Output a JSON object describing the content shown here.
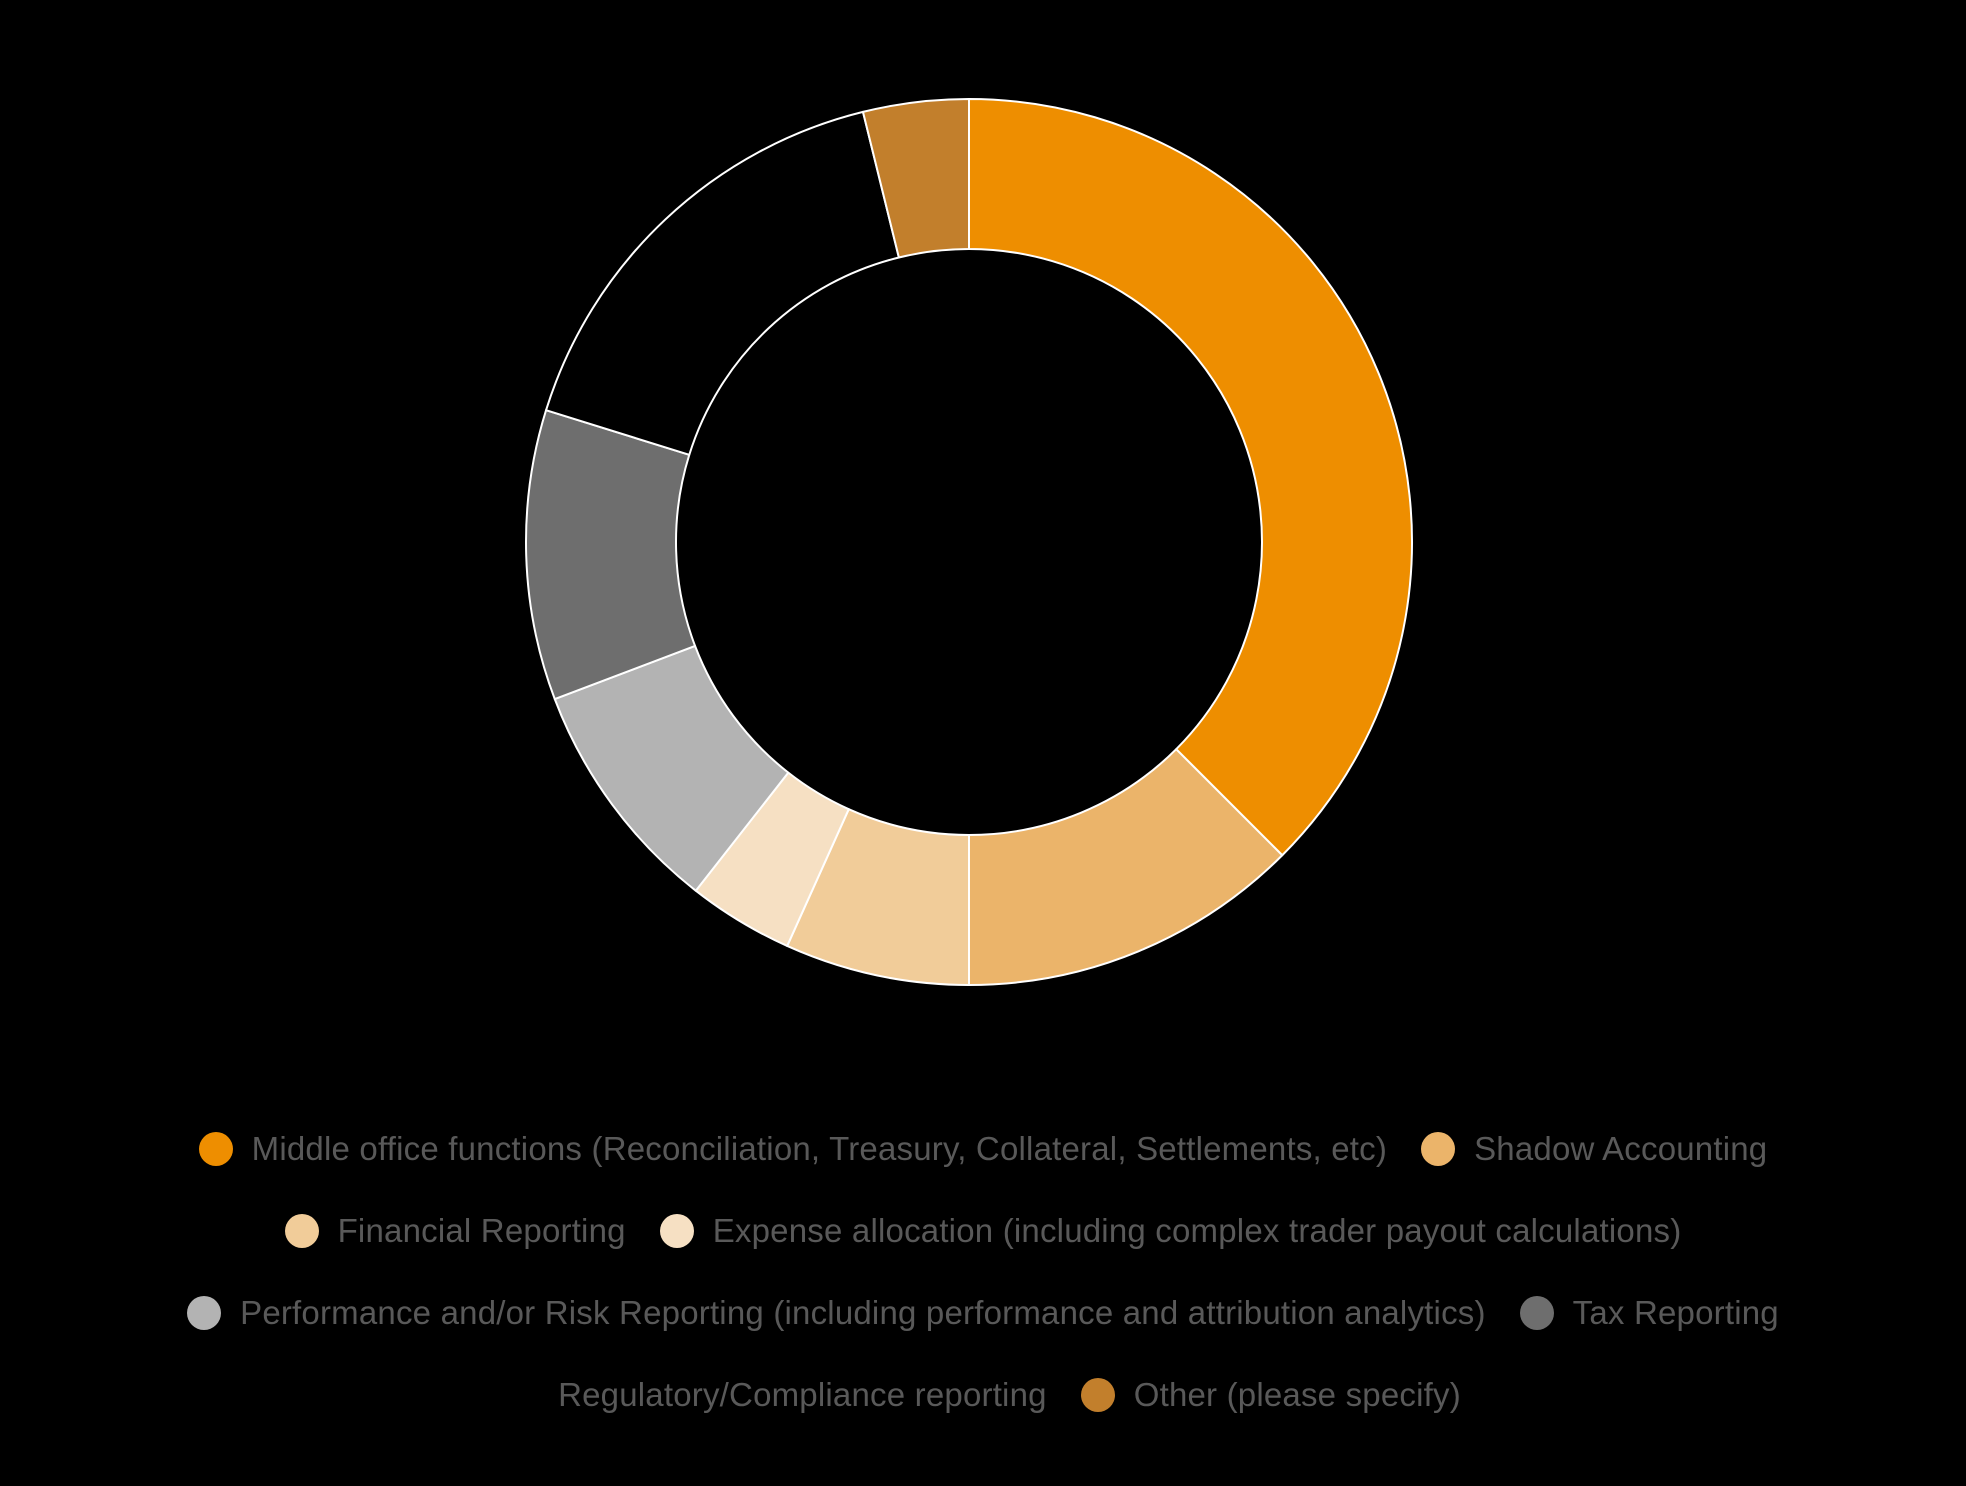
{
  "chart_data": {
    "type": "pie",
    "donut": true,
    "title": "",
    "legend_position": "bottom",
    "series": [
      {
        "name": "Middle office functions (Reconciliation, Treasury, Collateral, Settlements, etc)",
        "value": 39,
        "color": "#EE8E00"
      },
      {
        "name": "Shadow Accounting",
        "value": 13,
        "color": "#EBB46A"
      },
      {
        "name": "Financial Reporting",
        "value": 7,
        "color": "#F1CC99"
      },
      {
        "name": "Expense allocation (including complex trader payout calculations)",
        "value": 4,
        "color": "#F6E0C3"
      },
      {
        "name": "Performance and/or Risk Reporting (including performance and attribution analytics)",
        "value": 9,
        "color": "#B3B3B3"
      },
      {
        "name": "Tax Reporting",
        "value": 11,
        "color": "#6E6E6E"
      },
      {
        "name": "Regulatory/Compliance reporting",
        "value": 17,
        "color": "#000000"
      },
      {
        "name": "Other (please specify)",
        "value": 4,
        "color": "#C27F2C"
      }
    ]
  }
}
